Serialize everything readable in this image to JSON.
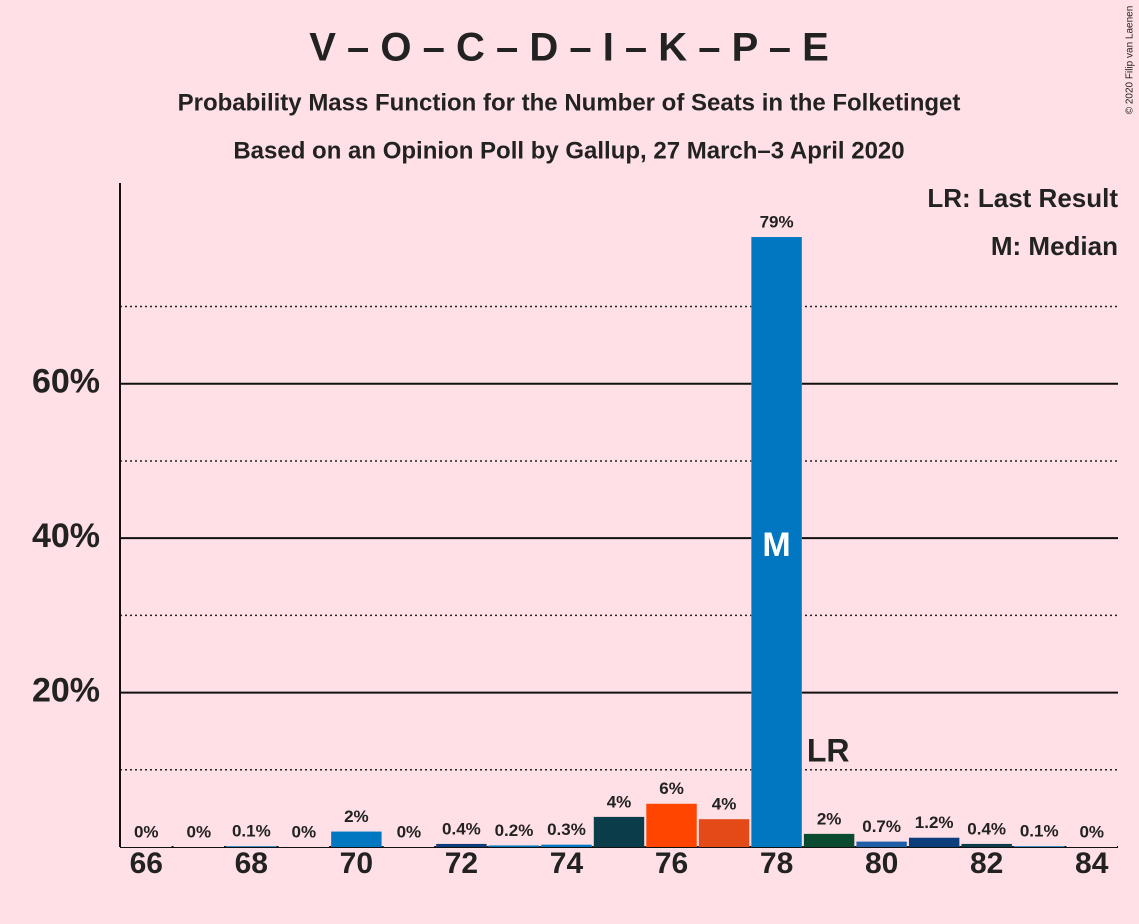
{
  "chart_data": {
    "type": "bar",
    "title": "V – O – C – D – I – K – P – E",
    "subtitle": "Probability Mass Function for the Number of Seats in the Folketinget",
    "subtitle2": "Based on an Opinion Poll by Gallup, 27 March–3 April 2020",
    "copyright": "© 2020 Filip van Laenen",
    "legend": [
      "LR: Last Result",
      "M: Median"
    ],
    "legend_position": "upper right",
    "categories": [
      66,
      null,
      68,
      null,
      70,
      null,
      72,
      null,
      74,
      null,
      76,
      null,
      78,
      null,
      80,
      null,
      82,
      null,
      84
    ],
    "values": [
      0,
      0,
      0.1,
      0,
      2,
      0,
      0.4,
      0.2,
      0.3,
      3.9,
      5.6,
      3.6,
      79,
      1.7,
      0.7,
      1.2,
      0.4,
      0.1,
      0
    ],
    "value_labels": [
      "0%",
      "0%",
      "0.1%",
      "0%",
      "2%",
      "0%",
      "0.4%",
      "0.2%",
      "0.3%",
      "4%",
      "6%",
      "4%",
      "79%",
      "2%",
      "0.7%",
      "1.2%",
      "0.4%",
      "0.1%",
      "0%"
    ],
    "colors": [
      "#0077c0",
      "#0077c0",
      "#0077c0",
      "#0077c0",
      "#0077c0",
      "#0077c0",
      "#0d3d7a",
      "#0077c0",
      "#0077c0",
      "#0a3c4a",
      "#ff4500",
      "#e34a18",
      "#0077c0",
      "#0a4a2e",
      "#1f5fa8",
      "#0d3d7a",
      "#0a3c4a",
      "#0077c0",
      "#0077c0"
    ],
    "annotations": [
      {
        "label": "M",
        "category": 78
      },
      {
        "label": "LR",
        "category": 79
      }
    ],
    "ylim": [
      0,
      86
    ],
    "yticks": [
      {
        "value": 20,
        "label": "20%"
      },
      {
        "value": 40,
        "label": "40%"
      },
      {
        "value": 60,
        "label": "60%"
      }
    ],
    "minor_yticks": [
      10,
      30,
      50,
      70
    ],
    "grid": true
  }
}
